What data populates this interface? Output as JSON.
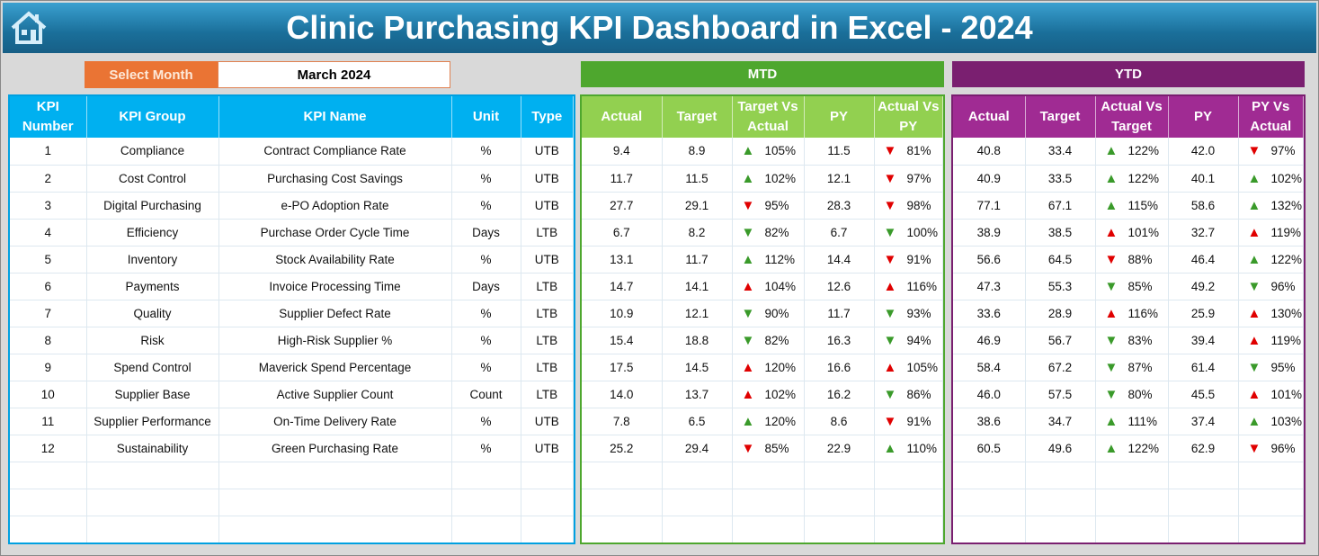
{
  "title": "Clinic Purchasing KPI Dashboard in Excel - 2024",
  "icons": {
    "home": "home-icon"
  },
  "colors": {
    "left": "#00b0f0",
    "mtd_band": "#4ea72e",
    "mtd_head": "#92d050",
    "ytd_band": "#7a1f70",
    "ytd_head": "#a02b93",
    "up_good": "#3a9a2a",
    "bad": "#e00000"
  },
  "select_month": {
    "label": "Select Month",
    "value": "March 2024"
  },
  "mtd": {
    "label": "MTD",
    "headers": [
      "Actual",
      "Target",
      "Target Vs Actual",
      "PY",
      "Actual Vs PY"
    ]
  },
  "ytd": {
    "label": "YTD",
    "headers": [
      "Actual",
      "Target",
      "Actual Vs Target",
      "PY",
      "PY Vs Actual"
    ]
  },
  "left_headers": [
    "KPI Number",
    "KPI Group",
    "KPI Name",
    "Unit",
    "Type"
  ],
  "rows": [
    {
      "n": "1",
      "group": "Compliance",
      "name": "Contract Compliance Rate",
      "unit": "%",
      "type": "UTB",
      "m": [
        "9.4",
        "8.9",
        "105%",
        "11.5",
        "81%"
      ],
      "ma": [
        "ug",
        "dr"
      ],
      "y": [
        "40.8",
        "33.4",
        "122%",
        "42.0",
        "97%"
      ],
      "ya": [
        "ug",
        "dr"
      ]
    },
    {
      "n": "2",
      "group": "Cost Control",
      "name": "Purchasing Cost Savings",
      "unit": "%",
      "type": "UTB",
      "m": [
        "11.7",
        "11.5",
        "102%",
        "12.1",
        "97%"
      ],
      "ma": [
        "ug",
        "dr"
      ],
      "y": [
        "40.9",
        "33.5",
        "122%",
        "40.1",
        "102%"
      ],
      "ya": [
        "ug",
        "ug"
      ]
    },
    {
      "n": "3",
      "group": "Digital Purchasing",
      "name": "e-PO Adoption Rate",
      "unit": "%",
      "type": "UTB",
      "m": [
        "27.7",
        "29.1",
        "95%",
        "28.3",
        "98%"
      ],
      "ma": [
        "dr",
        "dr"
      ],
      "y": [
        "77.1",
        "67.1",
        "115%",
        "58.6",
        "132%"
      ],
      "ya": [
        "ug",
        "ug"
      ]
    },
    {
      "n": "4",
      "group": "Efficiency",
      "name": "Purchase Order Cycle Time",
      "unit": "Days",
      "type": "LTB",
      "m": [
        "6.7",
        "8.2",
        "82%",
        "6.7",
        "100%"
      ],
      "ma": [
        "dg",
        "dg"
      ],
      "y": [
        "38.9",
        "38.5",
        "101%",
        "32.7",
        "119%"
      ],
      "ya": [
        "ur",
        "ur"
      ]
    },
    {
      "n": "5",
      "group": "Inventory",
      "name": "Stock Availability Rate",
      "unit": "%",
      "type": "UTB",
      "m": [
        "13.1",
        "11.7",
        "112%",
        "14.4",
        "91%"
      ],
      "ma": [
        "ug",
        "dr"
      ],
      "y": [
        "56.6",
        "64.5",
        "88%",
        "46.4",
        "122%"
      ],
      "ya": [
        "dr",
        "ug"
      ]
    },
    {
      "n": "6",
      "group": "Payments",
      "name": "Invoice Processing Time",
      "unit": "Days",
      "type": "LTB",
      "m": [
        "14.7",
        "14.1",
        "104%",
        "12.6",
        "116%"
      ],
      "ma": [
        "ur",
        "ur"
      ],
      "y": [
        "47.3",
        "55.3",
        "85%",
        "49.2",
        "96%"
      ],
      "ya": [
        "dg",
        "dg"
      ]
    },
    {
      "n": "7",
      "group": "Quality",
      "name": "Supplier Defect Rate",
      "unit": "%",
      "type": "LTB",
      "m": [
        "10.9",
        "12.1",
        "90%",
        "11.7",
        "93%"
      ],
      "ma": [
        "dg",
        "dg"
      ],
      "y": [
        "33.6",
        "28.9",
        "116%",
        "25.9",
        "130%"
      ],
      "ya": [
        "ur",
        "ur"
      ]
    },
    {
      "n": "8",
      "group": "Risk",
      "name": "High-Risk Supplier %",
      "unit": "%",
      "type": "LTB",
      "m": [
        "15.4",
        "18.8",
        "82%",
        "16.3",
        "94%"
      ],
      "ma": [
        "dg",
        "dg"
      ],
      "y": [
        "46.9",
        "56.7",
        "83%",
        "39.4",
        "119%"
      ],
      "ya": [
        "dg",
        "ur"
      ]
    },
    {
      "n": "9",
      "group": "Spend Control",
      "name": "Maverick Spend Percentage",
      "unit": "%",
      "type": "LTB",
      "m": [
        "17.5",
        "14.5",
        "120%",
        "16.6",
        "105%"
      ],
      "ma": [
        "ur",
        "ur"
      ],
      "y": [
        "58.4",
        "67.2",
        "87%",
        "61.4",
        "95%"
      ],
      "ya": [
        "dg",
        "dg"
      ]
    },
    {
      "n": "10",
      "group": "Supplier Base",
      "name": "Active Supplier Count",
      "unit": "Count",
      "type": "LTB",
      "m": [
        "14.0",
        "13.7",
        "102%",
        "16.2",
        "86%"
      ],
      "ma": [
        "ur",
        "dg"
      ],
      "y": [
        "46.0",
        "57.5",
        "80%",
        "45.5",
        "101%"
      ],
      "ya": [
        "dg",
        "ur"
      ]
    },
    {
      "n": "11",
      "group": "Supplier Performance",
      "name": "On-Time Delivery Rate",
      "unit": "%",
      "type": "UTB",
      "m": [
        "7.8",
        "6.5",
        "120%",
        "8.6",
        "91%"
      ],
      "ma": [
        "ug",
        "dr"
      ],
      "y": [
        "38.6",
        "34.7",
        "111%",
        "37.4",
        "103%"
      ],
      "ya": [
        "ug",
        "ug"
      ]
    },
    {
      "n": "12",
      "group": "Sustainability",
      "name": "Green Purchasing Rate",
      "unit": "%",
      "type": "UTB",
      "m": [
        "25.2",
        "29.4",
        "85%",
        "22.9",
        "110%"
      ],
      "ma": [
        "dr",
        "ug"
      ],
      "y": [
        "60.5",
        "49.6",
        "122%",
        "62.9",
        "96%"
      ],
      "ya": [
        "ug",
        "dr"
      ]
    }
  ]
}
